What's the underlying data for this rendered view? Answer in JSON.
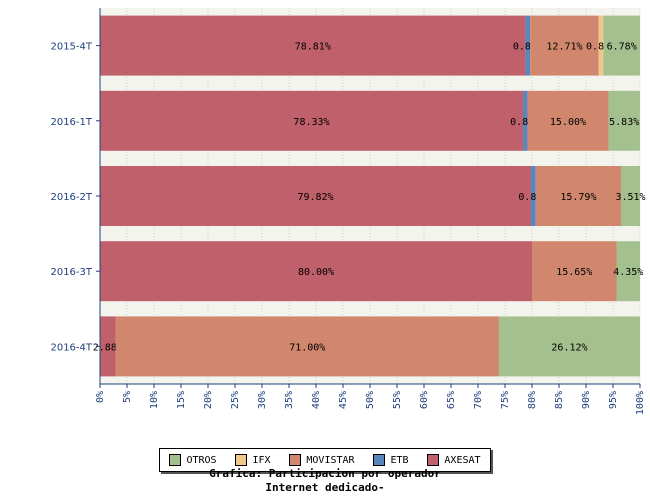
{
  "chart_data": {
    "type": "bar",
    "orientation": "horizontal",
    "stacked": true,
    "categories": [
      "2015-4T",
      "2016-1T",
      "2016-2T",
      "2016-3T",
      "2016-4T"
    ],
    "series": [
      {
        "name": "AXESAT",
        "color": "#c0606a",
        "values": [
          78.81,
          78.33,
          79.82,
          80.0,
          2.88
        ],
        "labels": [
          "78.81%",
          "78.33%",
          "79.82%",
          "80.00%",
          "2.88%"
        ]
      },
      {
        "name": "ETB",
        "color": "#5a86be",
        "values": [
          0.85,
          0.83,
          0.88,
          0,
          0
        ],
        "labels": [
          "0.85%",
          "0.83%",
          "0.88%",
          "",
          ""
        ]
      },
      {
        "name": "MOVISTAR",
        "color": "#d0876e",
        "values": [
          12.71,
          15.0,
          15.79,
          15.65,
          71.0
        ],
        "labels": [
          "12.71%",
          "15.00%",
          "15.79%",
          "15.65%",
          "71.00%"
        ]
      },
      {
        "name": "IFX",
        "color": "#f0c88a",
        "values": [
          0.85,
          0,
          0,
          0,
          0
        ],
        "labels": [
          "0.85%",
          "",
          "",
          "",
          ""
        ]
      },
      {
        "name": "OTROS",
        "color": "#a4c08e",
        "values": [
          6.78,
          5.83,
          3.51,
          4.35,
          26.12
        ],
        "labels": [
          "6.78%",
          "5.83%",
          "3.51%",
          "4.35%",
          "26.12%"
        ]
      }
    ],
    "xlim": [
      0,
      100
    ],
    "xticks": [
      "0%",
      "5%",
      "10%",
      "15%",
      "20%",
      "25%",
      "30%",
      "35%",
      "40%",
      "45%",
      "50%",
      "55%",
      "60%",
      "65%",
      "70%",
      "75%",
      "80%",
      "85%",
      "90%",
      "95%",
      "100%"
    ],
    "legend": [
      "OTROS",
      "IFX",
      "MOVISTAR",
      "ETB",
      "AXESAT"
    ],
    "legend_position": "bottom",
    "caption_line1": "Grafica: Participacion por operador",
    "caption_line2": "Internet dedicado-",
    "grid": true
  }
}
